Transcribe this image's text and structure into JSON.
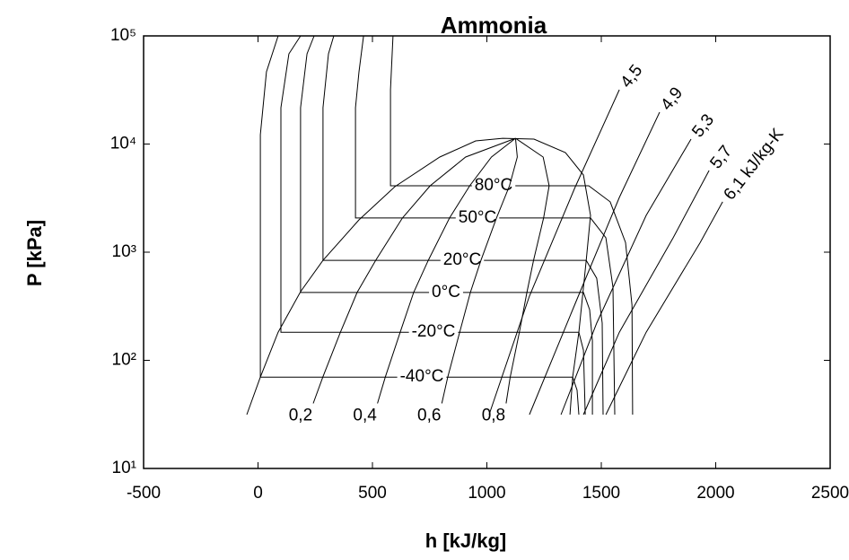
{
  "chart_data": {
    "type": "line",
    "title": "Ammonia",
    "xlabel": "h [kJ/kg]",
    "ylabel": "P [kPa]",
    "xlim": [
      -500,
      2500
    ],
    "ylim": [
      10,
      100000
    ],
    "log_y": true,
    "color": "#000000",
    "xticks": [
      -500,
      0,
      500,
      1000,
      1500,
      2000,
      2500
    ],
    "yticks": [
      {
        "value": 10,
        "label": "10¹"
      },
      {
        "value": 100,
        "label": "10²"
      },
      {
        "value": 1000,
        "label": "10³"
      },
      {
        "value": 10000,
        "label": "10⁴"
      },
      {
        "value": 100000,
        "label": "10⁵"
      }
    ],
    "dome": {
      "x": [
        -49,
        10,
        88,
        186,
        284,
        441,
        598,
        794,
        951,
        1069,
        1206,
        1343,
        1422,
        1453,
        1434,
        1402,
        1375,
        1363
      ],
      "y": [
        31.5,
        70,
        182,
        431,
        841,
        1991,
        4036,
        7580,
        10700,
        11300,
        11100,
        8340,
        5170,
        2190,
        841,
        182,
        70,
        31.5
      ]
    },
    "isotherms": [
      {
        "name": "-40°C",
        "x": [
          88,
          37,
          10,
          10,
          1375,
          1394,
          1402
        ],
        "y": [
          100000,
          46600,
          12200,
          70,
          70,
          53,
          31.5
        ]
      },
      {
        "name": "-20°C",
        "x": [
          186,
          135,
          100,
          100,
          1402,
          1422,
          1430
        ],
        "y": [
          100000,
          68200,
          21700,
          182,
          182,
          124,
          31.5
        ]
      },
      {
        "name": "0°C",
        "x": [
          245,
          214,
          186,
          186,
          1422,
          1449,
          1461,
          1461
        ],
        "y": [
          100000,
          68200,
          21700,
          424,
          424,
          294,
          151,
          31.5
        ]
      },
      {
        "name": "20°C",
        "x": [
          331,
          308,
          284,
          284,
          1434,
          1480,
          1504,
          1508
        ],
        "y": [
          100000,
          68200,
          21700,
          841,
          841,
          574,
          221,
          31.5
        ]
      },
      {
        "name": "50°C",
        "x": [
          461,
          441,
          426,
          426,
          1453,
          1520,
          1551,
          1559
        ],
        "y": [
          100000,
          46600,
          21700,
          2070,
          2070,
          1360,
          474,
          31.5
        ]
      },
      {
        "name": "80°C",
        "x": [
          590,
          579,
          579,
          1445,
          1539,
          1606,
          1634,
          1637
        ],
        "y": [
          100000,
          31800,
          4110,
          4110,
          2920,
          1230,
          324,
          31.5
        ]
      }
    ],
    "quality_lines": [
      {
        "name": "0,2",
        "x": [
          241,
          283,
          360,
          433,
          514,
          631,
          752,
          907,
          1125
        ],
        "y": [
          40,
          70,
          182,
          424,
          841,
          2070,
          4110,
          7580,
          11300
        ]
      },
      {
        "name": "0,4",
        "x": [
          522,
          556,
          621,
          680,
          744,
          837,
          925,
          1020,
          1125
        ],
        "y": [
          40,
          70,
          182,
          424,
          841,
          2070,
          4110,
          7580,
          11300
        ]
      },
      {
        "name": "0,6",
        "x": [
          803,
          829,
          881,
          928,
          974,
          1042,
          1099,
          1133,
          1125
        ],
        "y": [
          40,
          70,
          182,
          424,
          841,
          2070,
          4110,
          7580,
          11300
        ]
      },
      {
        "name": "0,8",
        "x": [
          1084,
          1102,
          1142,
          1175,
          1204,
          1248,
          1272,
          1246,
          1125
        ],
        "y": [
          40,
          70,
          182,
          424,
          841,
          2070,
          4110,
          7580,
          11300
        ]
      }
    ],
    "isentropes": [
      {
        "name": "4,5",
        "x": [
          1010,
          1186,
          1383,
          1579
        ],
        "y": [
          31.5,
          392,
          3880,
          31800
        ]
      },
      {
        "name": "4,9",
        "x": [
          1186,
          1383,
          1579,
          1755
        ],
        "y": [
          31.5,
          324,
          3210,
          19700
        ]
      },
      {
        "name": "5,3",
        "x": [
          1324,
          1480,
          1696,
          1892
        ],
        "y": [
          31.5,
          221,
          2190,
          11100
        ]
      },
      {
        "name": "5,7",
        "x": [
          1422,
          1579,
          1814,
          1971
        ],
        "y": [
          31.5,
          182,
          1360,
          5690
        ]
      },
      {
        "name": "6,1 kJ/kg-K",
        "x": [
          1520,
          1696,
          1932,
          2030
        ],
        "y": [
          31.5,
          182,
          1230,
          2920
        ]
      }
    ]
  }
}
